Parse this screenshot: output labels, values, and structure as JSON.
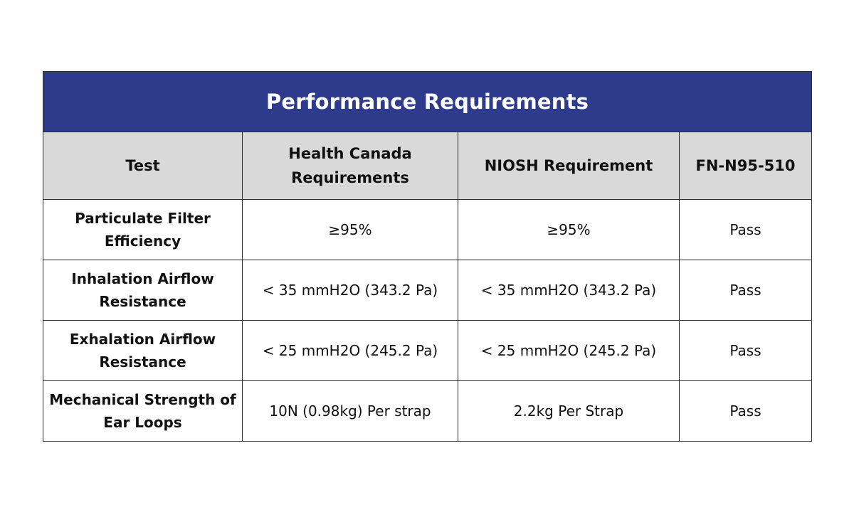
{
  "title": "Performance Requirements",
  "columns": [
    "Test",
    "Health Canada Requirements",
    "NIOSH Requirement",
    "FN-N95-510"
  ],
  "rows": [
    {
      "test": "Particulate Filter Efficiency",
      "health_canada": "≥95%",
      "niosh": "≥95%",
      "result": "Pass"
    },
    {
      "test": "Inhalation Airflow Resistance",
      "health_canada": "< 35 mmH2O (343.2 Pa)",
      "niosh": "< 35 mmH2O (343.2 Pa)",
      "result": "Pass"
    },
    {
      "test": "Exhalation Airflow Resistance",
      "health_canada": "< 25 mmH2O (245.2 Pa)",
      "niosh": "< 25 mmH2O (245.2 Pa)",
      "result": "Pass"
    },
    {
      "test": "Mechanical Strength of Ear Loops",
      "health_canada": "10N (0.98kg) Per strap",
      "niosh": "2.2kg Per Strap",
      "result": "Pass"
    }
  ],
  "colors": {
    "title_bg": "#2e3a8c",
    "title_text": "#ffffff",
    "header_bg": "#d9d9d9",
    "border": "#2b2b2b"
  }
}
